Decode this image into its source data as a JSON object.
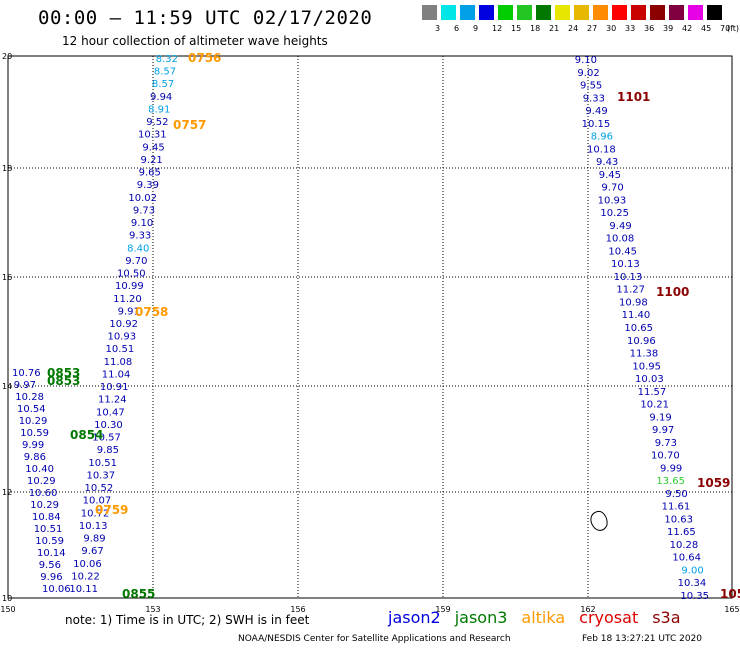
{
  "header": {
    "title": "00:00 – 11:59 UTC 02/17/2020",
    "subtitle": "12 hour collection of altimeter wave heights"
  },
  "color_scale": {
    "unit": "(ft)",
    "bins": [
      {
        "label": "3",
        "color": "#808080"
      },
      {
        "label": "6",
        "color": "#00e5e5"
      },
      {
        "label": "9",
        "color": "#00a0e6"
      },
      {
        "label": "12",
        "color": "#0000e0"
      },
      {
        "label": "15",
        "color": "#00cc00"
      },
      {
        "label": "18",
        "color": "#22c522"
      },
      {
        "label": "21",
        "color": "#007800"
      },
      {
        "label": "24",
        "color": "#e6e600"
      },
      {
        "label": "27",
        "color": "#e6b800"
      },
      {
        "label": "30",
        "color": "#ff8c00"
      },
      {
        "label": "33",
        "color": "#ff0000"
      },
      {
        "label": "36",
        "color": "#c80000"
      },
      {
        "label": "39",
        "color": "#8b0000"
      },
      {
        "label": "42",
        "color": "#800040"
      },
      {
        "label": "45",
        "color": "#e600e6"
      },
      {
        "label": "70",
        "color": "#000000"
      }
    ]
  },
  "map": {
    "x_ticks": [
      "150",
      "153",
      "156",
      "159",
      "162",
      "165"
    ],
    "y_ticks": [
      "20",
      "18",
      "16",
      "14",
      "12",
      "10"
    ]
  },
  "colors": {
    "grid": "#000000",
    "blue": "#0000b0",
    "cyan": "#00a0e6",
    "green": "#007800",
    "orange": "#ff9900",
    "darkred": "#8b0000",
    "lightgreen": "#33cc33"
  },
  "tracks": [
    {
      "id": "track-left-north",
      "labels": [
        {
          "t": "8.32",
          "c": "cyan"
        },
        {
          "t": "8.57",
          "c": "cyan"
        },
        {
          "t": "8.57",
          "c": "cyan"
        },
        {
          "t": "9.94",
          "c": "blue"
        },
        {
          "t": "8.91",
          "c": "cyan"
        },
        {
          "t": "9.52",
          "c": "blue"
        },
        {
          "t": "10.31",
          "c": "blue"
        },
        {
          "t": "9.45",
          "c": "blue"
        },
        {
          "t": "9.21",
          "c": "blue"
        },
        {
          "t": "9.65",
          "c": "blue"
        },
        {
          "t": "9.39",
          "c": "blue"
        },
        {
          "t": "10.02",
          "c": "blue"
        },
        {
          "t": "9.73",
          "c": "blue"
        },
        {
          "t": "9.10",
          "c": "blue"
        },
        {
          "t": "9.33",
          "c": "blue"
        },
        {
          "t": "8.40",
          "c": "cyan"
        },
        {
          "t": "9.70",
          "c": "blue"
        },
        {
          "t": "10.50",
          "c": "blue"
        },
        {
          "t": "10.99",
          "c": "blue"
        },
        {
          "t": "11.20",
          "c": "blue"
        },
        {
          "t": "9.91",
          "c": "blue"
        },
        {
          "t": "10.92",
          "c": "blue"
        },
        {
          "t": "10.93",
          "c": "blue"
        },
        {
          "t": "10.51",
          "c": "blue"
        },
        {
          "t": "11.08",
          "c": "blue"
        },
        {
          "t": "11.04",
          "c": "blue"
        },
        {
          "t": "10.91",
          "c": "blue"
        },
        {
          "t": "11.24",
          "c": "blue"
        },
        {
          "t": "10.47",
          "c": "blue"
        },
        {
          "t": "10.30",
          "c": "blue"
        },
        {
          "t": "10.57",
          "c": "blue"
        },
        {
          "t": "9.85",
          "c": "blue"
        },
        {
          "t": "10.51",
          "c": "blue"
        },
        {
          "t": "10.37",
          "c": "blue"
        },
        {
          "t": "10.52",
          "c": "blue"
        },
        {
          "t": "10.07",
          "c": "blue"
        },
        {
          "t": "10.72",
          "c": "blue"
        },
        {
          "t": "10.13",
          "c": "blue"
        },
        {
          "t": "9.89",
          "c": "blue"
        },
        {
          "t": "9.67",
          "c": "blue"
        },
        {
          "t": "10.06",
          "c": "blue"
        },
        {
          "t": "10.22",
          "c": "blue"
        },
        {
          "t": "10.11",
          "c": "blue"
        }
      ]
    },
    {
      "id": "track-left-cluster",
      "labels": [
        {
          "t": "10.76",
          "c": "blue"
        },
        {
          "t": "9.97",
          "c": "blue"
        },
        {
          "t": "10.28",
          "c": "blue"
        },
        {
          "t": "10.54",
          "c": "blue"
        },
        {
          "t": "10.29",
          "c": "blue"
        },
        {
          "t": "10.59",
          "c": "blue"
        },
        {
          "t": "9.99",
          "c": "blue"
        },
        {
          "t": "9.86",
          "c": "blue"
        },
        {
          "t": "10.40",
          "c": "blue"
        },
        {
          "t": "10.29",
          "c": "blue"
        },
        {
          "t": "10.60",
          "c": "blue"
        },
        {
          "t": "10.29",
          "c": "blue"
        },
        {
          "t": "10.84",
          "c": "blue"
        },
        {
          "t": "10.51",
          "c": "blue"
        },
        {
          "t": "10.59",
          "c": "blue"
        },
        {
          "t": "10.14",
          "c": "blue"
        },
        {
          "t": "9.56",
          "c": "blue"
        },
        {
          "t": "9.96",
          "c": "blue"
        },
        {
          "t": "10.06",
          "c": "blue"
        }
      ]
    },
    {
      "id": "track-right",
      "labels": [
        {
          "t": "9.10",
          "c": "blue"
        },
        {
          "t": "9.02",
          "c": "blue"
        },
        {
          "t": "9.55",
          "c": "blue"
        },
        {
          "t": "9.33",
          "c": "blue"
        },
        {
          "t": "9.49",
          "c": "blue"
        },
        {
          "t": "10.15",
          "c": "blue"
        },
        {
          "t": "8.96",
          "c": "cyan"
        },
        {
          "t": "10.18",
          "c": "blue"
        },
        {
          "t": "9.43",
          "c": "blue"
        },
        {
          "t": "9.45",
          "c": "blue"
        },
        {
          "t": "9.70",
          "c": "blue"
        },
        {
          "t": "10.93",
          "c": "blue"
        },
        {
          "t": "10.25",
          "c": "blue"
        },
        {
          "t": "9.49",
          "c": "blue"
        },
        {
          "t": "10.08",
          "c": "blue"
        },
        {
          "t": "10.45",
          "c": "blue"
        },
        {
          "t": "10.13",
          "c": "blue"
        },
        {
          "t": "10.13",
          "c": "blue"
        },
        {
          "t": "11.27",
          "c": "blue"
        },
        {
          "t": "10.98",
          "c": "blue"
        },
        {
          "t": "11.40",
          "c": "blue"
        },
        {
          "t": "10.65",
          "c": "blue"
        },
        {
          "t": "10.96",
          "c": "blue"
        },
        {
          "t": "11.38",
          "c": "blue"
        },
        {
          "t": "10.95",
          "c": "blue"
        },
        {
          "t": "10.03",
          "c": "blue"
        },
        {
          "t": "11.57",
          "c": "blue"
        },
        {
          "t": "10.21",
          "c": "blue"
        },
        {
          "t": "9.19",
          "c": "blue"
        },
        {
          "t": "9.97",
          "c": "blue"
        },
        {
          "t": "9.73",
          "c": "blue"
        },
        {
          "t": "10.70",
          "c": "blue"
        },
        {
          "t": "9.99",
          "c": "blue"
        },
        {
          "t": "13.65",
          "c": "lightgreen"
        },
        {
          "t": "9.50",
          "c": "blue"
        },
        {
          "t": "11.61",
          "c": "blue"
        },
        {
          "t": "10.63",
          "c": "blue"
        },
        {
          "t": "11.65",
          "c": "blue"
        },
        {
          "t": "10.28",
          "c": "blue"
        },
        {
          "t": "10.64",
          "c": "blue"
        },
        {
          "t": "9.00",
          "c": "cyan"
        },
        {
          "t": "10.34",
          "c": "blue"
        },
        {
          "t": "10.35",
          "c": "blue"
        }
      ]
    }
  ],
  "time_labels": [
    {
      "t": "0756",
      "c": "orange"
    },
    {
      "t": "0757",
      "c": "orange"
    },
    {
      "t": "0758",
      "c": "orange"
    },
    {
      "t": "0759",
      "c": "orange"
    },
    {
      "t": "0853",
      "c": "green"
    },
    {
      "t": "0853",
      "c": "green"
    },
    {
      "t": "0854",
      "c": "green"
    },
    {
      "t": "0855",
      "c": "green"
    },
    {
      "t": "1101",
      "c": "darkred"
    },
    {
      "t": "1100",
      "c": "darkred"
    },
    {
      "t": "1059",
      "c": "darkred"
    },
    {
      "t": "105",
      "c": "darkred"
    }
  ],
  "note": "note: 1) Time is in UTC; 2) SWH is in feet",
  "legend": [
    {
      "name": "jason2",
      "color": "#0000e0"
    },
    {
      "name": "jason3",
      "color": "#007800"
    },
    {
      "name": "altika",
      "color": "#ff9900"
    },
    {
      "name": "cryosat",
      "color": "#e00000"
    },
    {
      "name": "s3a",
      "color": "#8b0000"
    }
  ],
  "footer": "NOAA/NESDIS Center for Satellite Applications and Research",
  "timestamp": "Feb 18 13:27:21 UTC 2020"
}
